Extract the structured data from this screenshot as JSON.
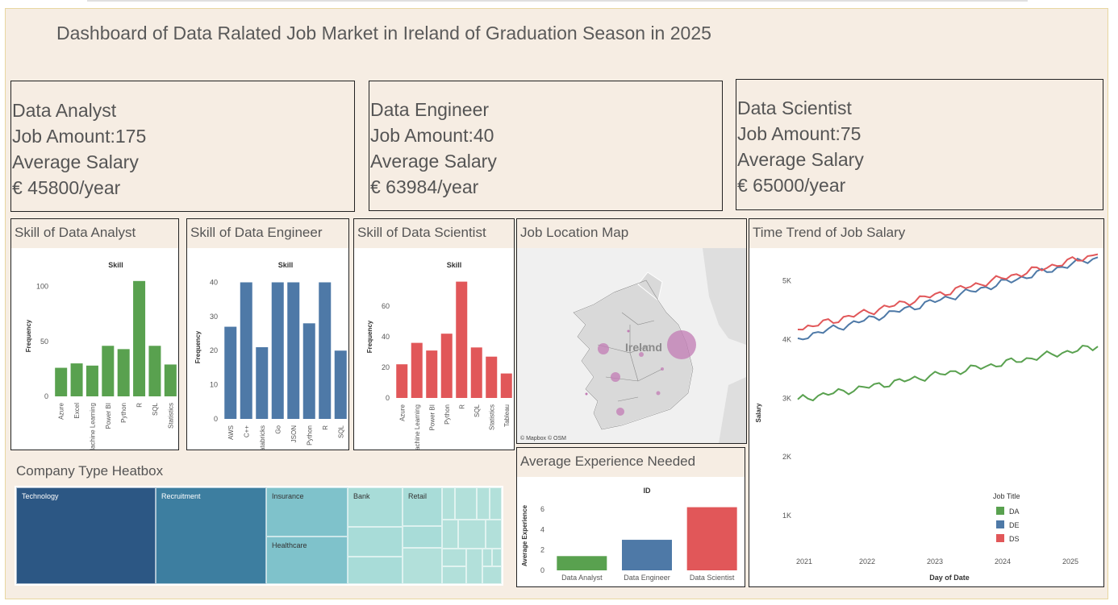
{
  "title": "Dashboard of Data Ralated Job Market in Ireland of Graduation Season in 2025",
  "kpis": [
    {
      "role": "Data Analyst",
      "amount": "Job Amount:175",
      "salary_label": "Average Salary",
      "salary": "€ 45800/year"
    },
    {
      "role": "Data Engineer",
      "amount": "Job Amount:40",
      "salary_label": "Average Salary",
      "salary": "€ 63984/year"
    },
    {
      "role": "Data Scientist",
      "amount": "Job Amount:75",
      "salary_label": "Average Salary",
      "salary": "€ 65000/year"
    }
  ],
  "panels": {
    "da_skill": "Skill of Data Analyst",
    "de_skill": "Skill of Data Engineer",
    "ds_skill": "Skill of Data Scientist",
    "map": "Job Location Map",
    "trend": "Time Trend of Job Salary",
    "experience": "Average Experience Needed",
    "heatbox": "Company Type Heatbox"
  },
  "map": {
    "country_label": "Ireland",
    "attribution": "© Mapbox © OSM",
    "bubble_color": "#c27bb4"
  },
  "colors": {
    "da": "#59a14f",
    "de": "#4e79a7",
    "ds": "#e15759",
    "heat_dark": "#2c5784",
    "heat_mid": "#3d7ea0",
    "heat_light": "#7fc2cb",
    "heat_lighter": "#a8dcd8"
  },
  "heatbox": {
    "labels": [
      "Technology",
      "Recruitment",
      "Insurance",
      "Healthcare",
      "Bank",
      "Retail"
    ]
  },
  "chart_data": [
    {
      "type": "bar",
      "title": "Skill",
      "ylabel": "Frequency",
      "ylim": [
        0,
        110
      ],
      "yticks": [
        0,
        50,
        100
      ],
      "categories": [
        "Azure",
        "Excel",
        "Machine Learning",
        "Power BI",
        "Python",
        "R",
        "SQL",
        "Statistics"
      ],
      "values": [
        26,
        30,
        28,
        46,
        43,
        105,
        46,
        29
      ]
    },
    {
      "type": "bar",
      "title": "Skill",
      "ylabel": "Frequency",
      "ylim": [
        0,
        42
      ],
      "yticks": [
        0,
        10,
        20,
        30,
        40
      ],
      "categories": [
        "AWS",
        "C++",
        "Databricks",
        "Go",
        "JSON",
        "Python",
        "R",
        "SQL"
      ],
      "values": [
        27,
        40,
        21,
        40,
        40,
        28,
        40,
        20
      ]
    },
    {
      "type": "bar",
      "title": "Skill",
      "ylabel": "Frequency",
      "ylim": [
        0,
        80
      ],
      "yticks": [
        0,
        20,
        40,
        60
      ],
      "categories": [
        "Azure",
        "Machine Learning",
        "Power BI",
        "Python",
        "R",
        "SQL",
        "Statistics",
        "Tableau"
      ],
      "values": [
        22,
        36,
        31,
        42,
        76,
        33,
        27,
        16
      ]
    },
    {
      "type": "bar",
      "title": "ID",
      "ylabel": "Average Experience",
      "ylim": [
        0,
        6.8
      ],
      "yticks": [
        0,
        2,
        4,
        6
      ],
      "categories": [
        "Data Analyst",
        "Data Engineer",
        "Data Scientist"
      ],
      "values": [
        1.4,
        3.0,
        6.2
      ]
    },
    {
      "type": "line",
      "xlabel": "Day of Date",
      "ylabel": "Salary",
      "ylim": [
        0,
        5500
      ],
      "yticks": [
        {
          "v": 1000,
          "label": "1K"
        },
        {
          "v": 2000,
          "label": "2K"
        },
        {
          "v": 3000,
          "label": "3K"
        },
        {
          "v": 4000,
          "label": "4K"
        },
        {
          "v": 5000,
          "label": "5K"
        }
      ],
      "xticks": [
        "2021",
        "2022",
        "2023",
        "2024",
        "2025"
      ],
      "legend_title": "Job Title",
      "series": [
        {
          "name": "DA",
          "start": 2980,
          "end": 3880
        },
        {
          "name": "DE",
          "start": 4020,
          "end": 5400
        },
        {
          "name": "DS",
          "start": 4170,
          "end": 5450
        }
      ]
    }
  ]
}
